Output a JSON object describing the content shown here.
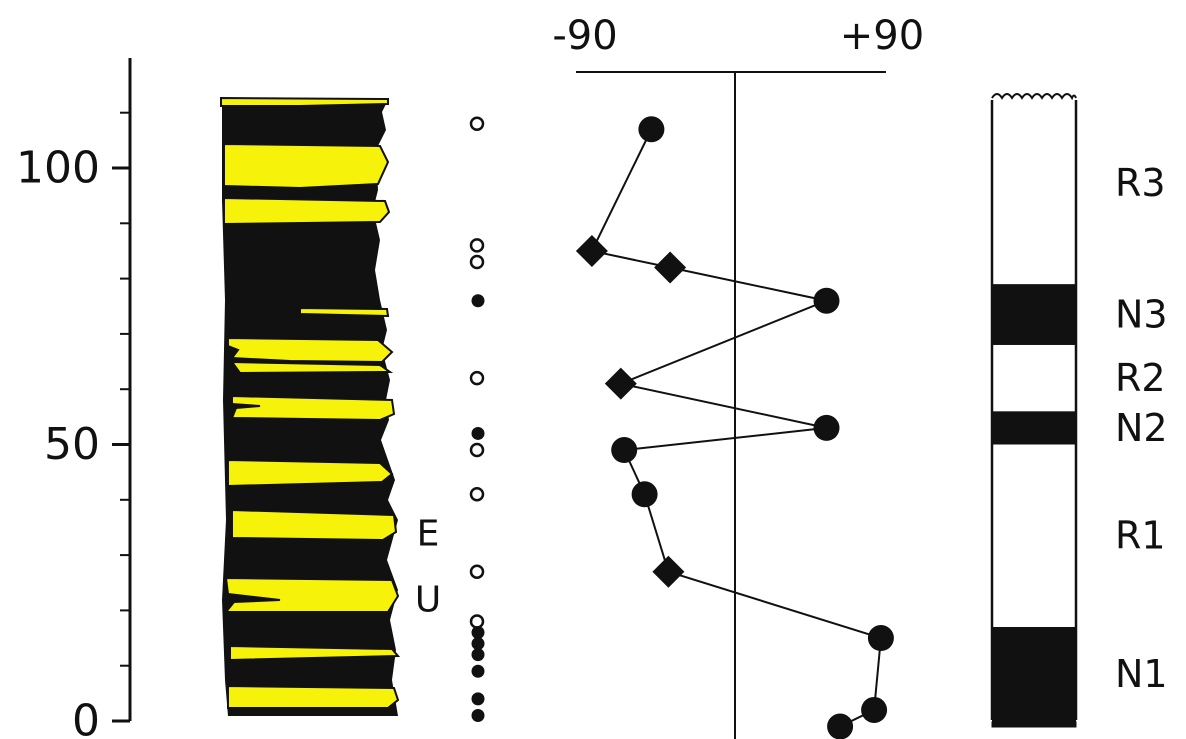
{
  "depth_axis": {
    "ticks": [
      {
        "value": 0,
        "label": "0"
      },
      {
        "value": 50,
        "label": "50"
      },
      {
        "value": 100,
        "label": "100"
      }
    ]
  },
  "column_markers": [
    "E",
    "U"
  ],
  "site_dots": {
    "open": [
      108,
      86,
      83,
      62,
      49,
      41,
      27,
      18
    ],
    "filled": [
      76,
      52,
      16,
      14,
      12,
      9,
      4,
      1
    ]
  },
  "inclination_plot": {
    "axis_labels": {
      "min": "-90",
      "max": "+90"
    },
    "xlim": [
      -90,
      90
    ],
    "ylim": [
      0,
      118
    ],
    "points": [
      {
        "x": -48,
        "y": 107,
        "marker": "circle"
      },
      {
        "x": -83,
        "y": 85,
        "marker": "diamond"
      },
      {
        "x": -37,
        "y": 82,
        "marker": "diamond"
      },
      {
        "x": 55,
        "y": 76,
        "marker": "circle"
      },
      {
        "x": -66,
        "y": 61,
        "marker": "diamond"
      },
      {
        "x": 55,
        "y": 53,
        "marker": "circle"
      },
      {
        "x": -64,
        "y": 49,
        "marker": "circle"
      },
      {
        "x": -52,
        "y": 41,
        "marker": "circle"
      },
      {
        "x": -38,
        "y": 27,
        "marker": "diamond"
      },
      {
        "x": 87,
        "y": 15,
        "marker": "circle"
      },
      {
        "x": 83,
        "y": 2,
        "marker": "circle"
      },
      {
        "x": 63,
        "y": -1,
        "marker": "circle"
      }
    ]
  },
  "polarity_column": {
    "zones": [
      {
        "label": "R3",
        "polarity": "reversed",
        "from": 79,
        "to": 112
      },
      {
        "label": "N3",
        "polarity": "normal",
        "from": 68,
        "to": 79
      },
      {
        "label": "R2",
        "polarity": "reversed",
        "from": 56,
        "to": 68
      },
      {
        "label": "N2",
        "polarity": "normal",
        "from": 50,
        "to": 56
      },
      {
        "label": "R1",
        "polarity": "reversed",
        "from": 17,
        "to": 50
      },
      {
        "label": "N1",
        "polarity": "normal",
        "from": 0,
        "to": 17
      }
    ]
  },
  "colors": {
    "ink": "#111111",
    "sandstone": "#f7f20a",
    "background": "#ffffff"
  }
}
